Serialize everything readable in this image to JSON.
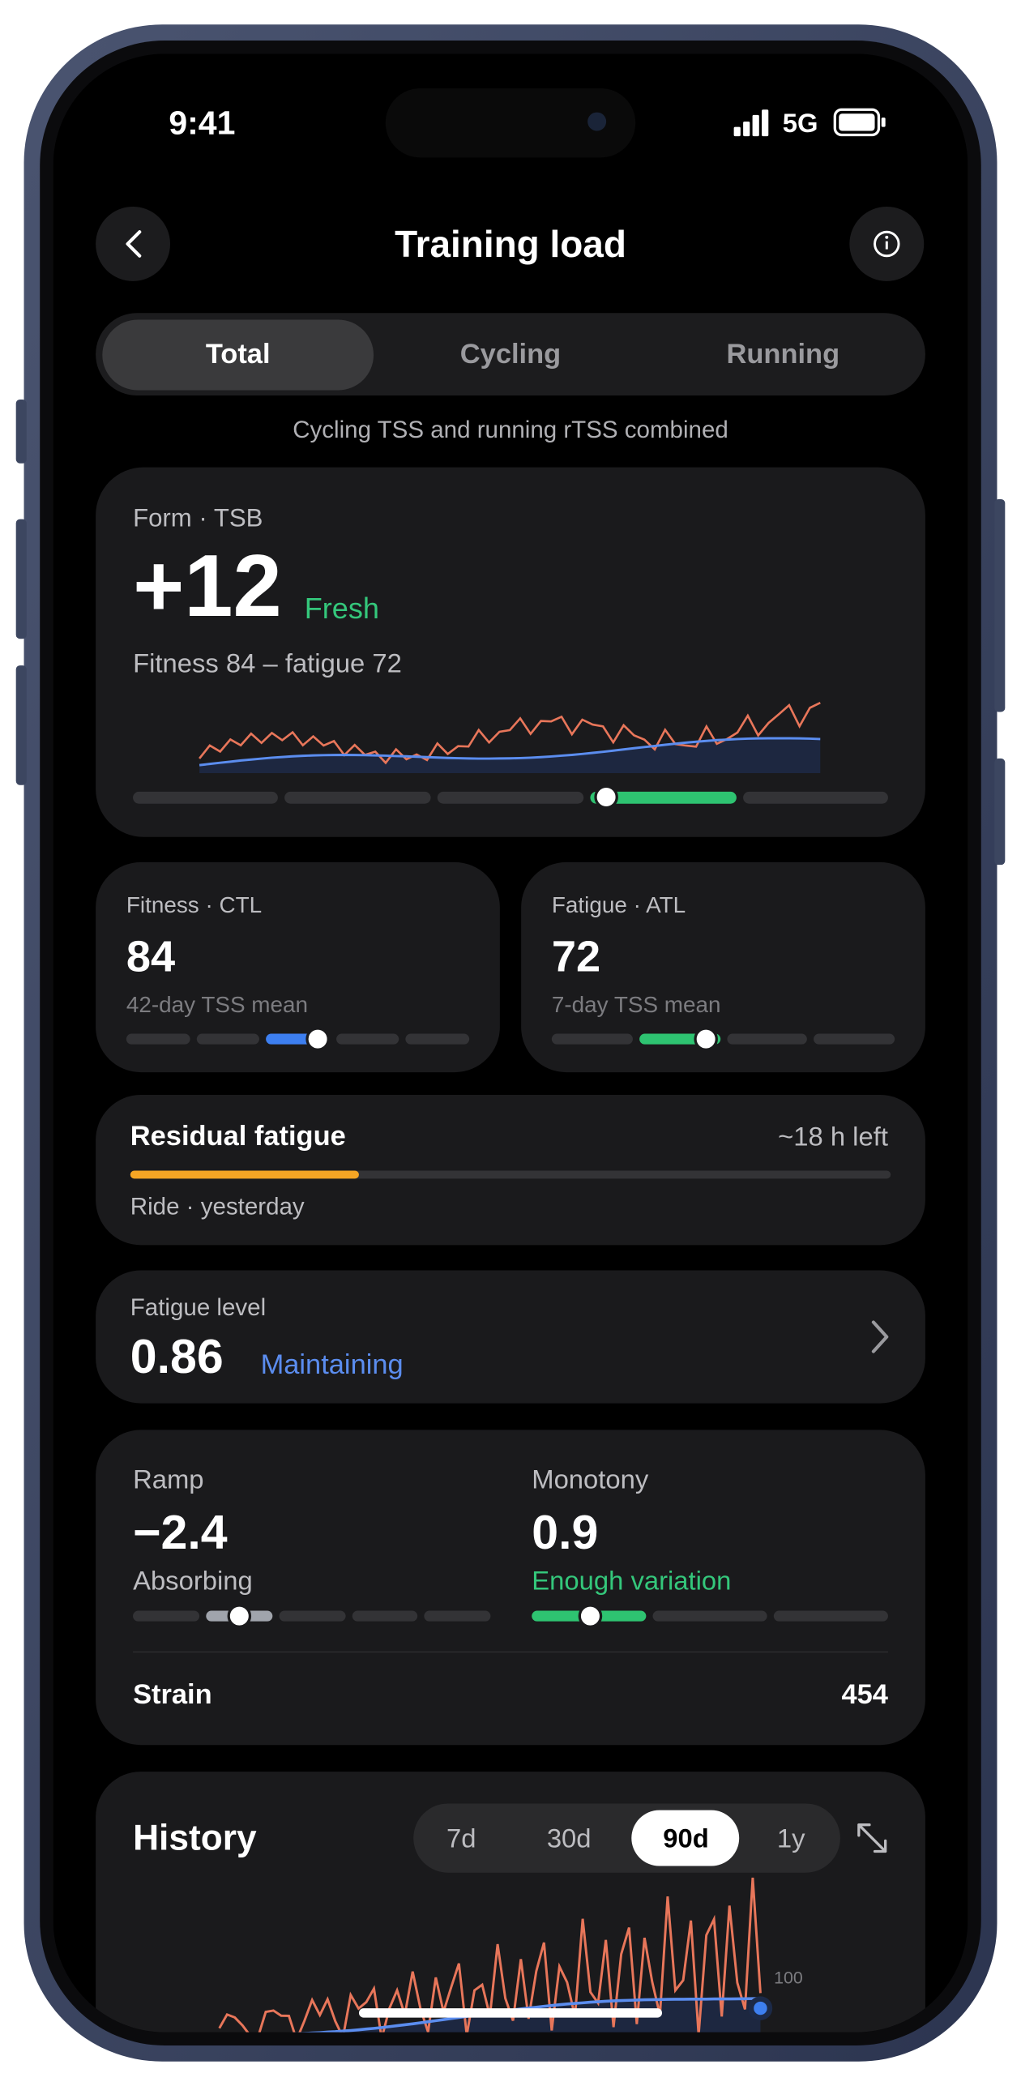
{
  "status": {
    "time": "9:41",
    "network": "5G"
  },
  "header": {
    "title": "Training load"
  },
  "tabs": [
    "Total",
    "Cycling",
    "Running"
  ],
  "subtitle": "Cycling TSS and running rTSS combined",
  "form": {
    "label": "Form · TSB",
    "value": "+12",
    "status": "Fresh",
    "detail": "Fitness 84 – fatigue 72"
  },
  "fitness": {
    "label": "Fitness · CTL",
    "value": "84",
    "note": "42-day TSS mean"
  },
  "fatigue": {
    "label": "Fatigue · ATL",
    "value": "72",
    "note": "7-day TSS mean"
  },
  "residual": {
    "title": "Residual fatigue",
    "remaining": "~18 h left",
    "source": "Ride · yesterday"
  },
  "fatigue_level": {
    "label": "Fatigue level",
    "value": "0.86",
    "status": "Maintaining"
  },
  "ramp": {
    "label": "Ramp",
    "value": "−2.4",
    "status": "Absorbing"
  },
  "monotony": {
    "label": "Monotony",
    "value": "0.9",
    "status": "Enough variation"
  },
  "strain": {
    "label": "Strain",
    "value": "454"
  },
  "history": {
    "title": "History",
    "ranges": [
      "7d",
      "30d",
      "90d",
      "1y"
    ],
    "axis_label": "100"
  }
}
